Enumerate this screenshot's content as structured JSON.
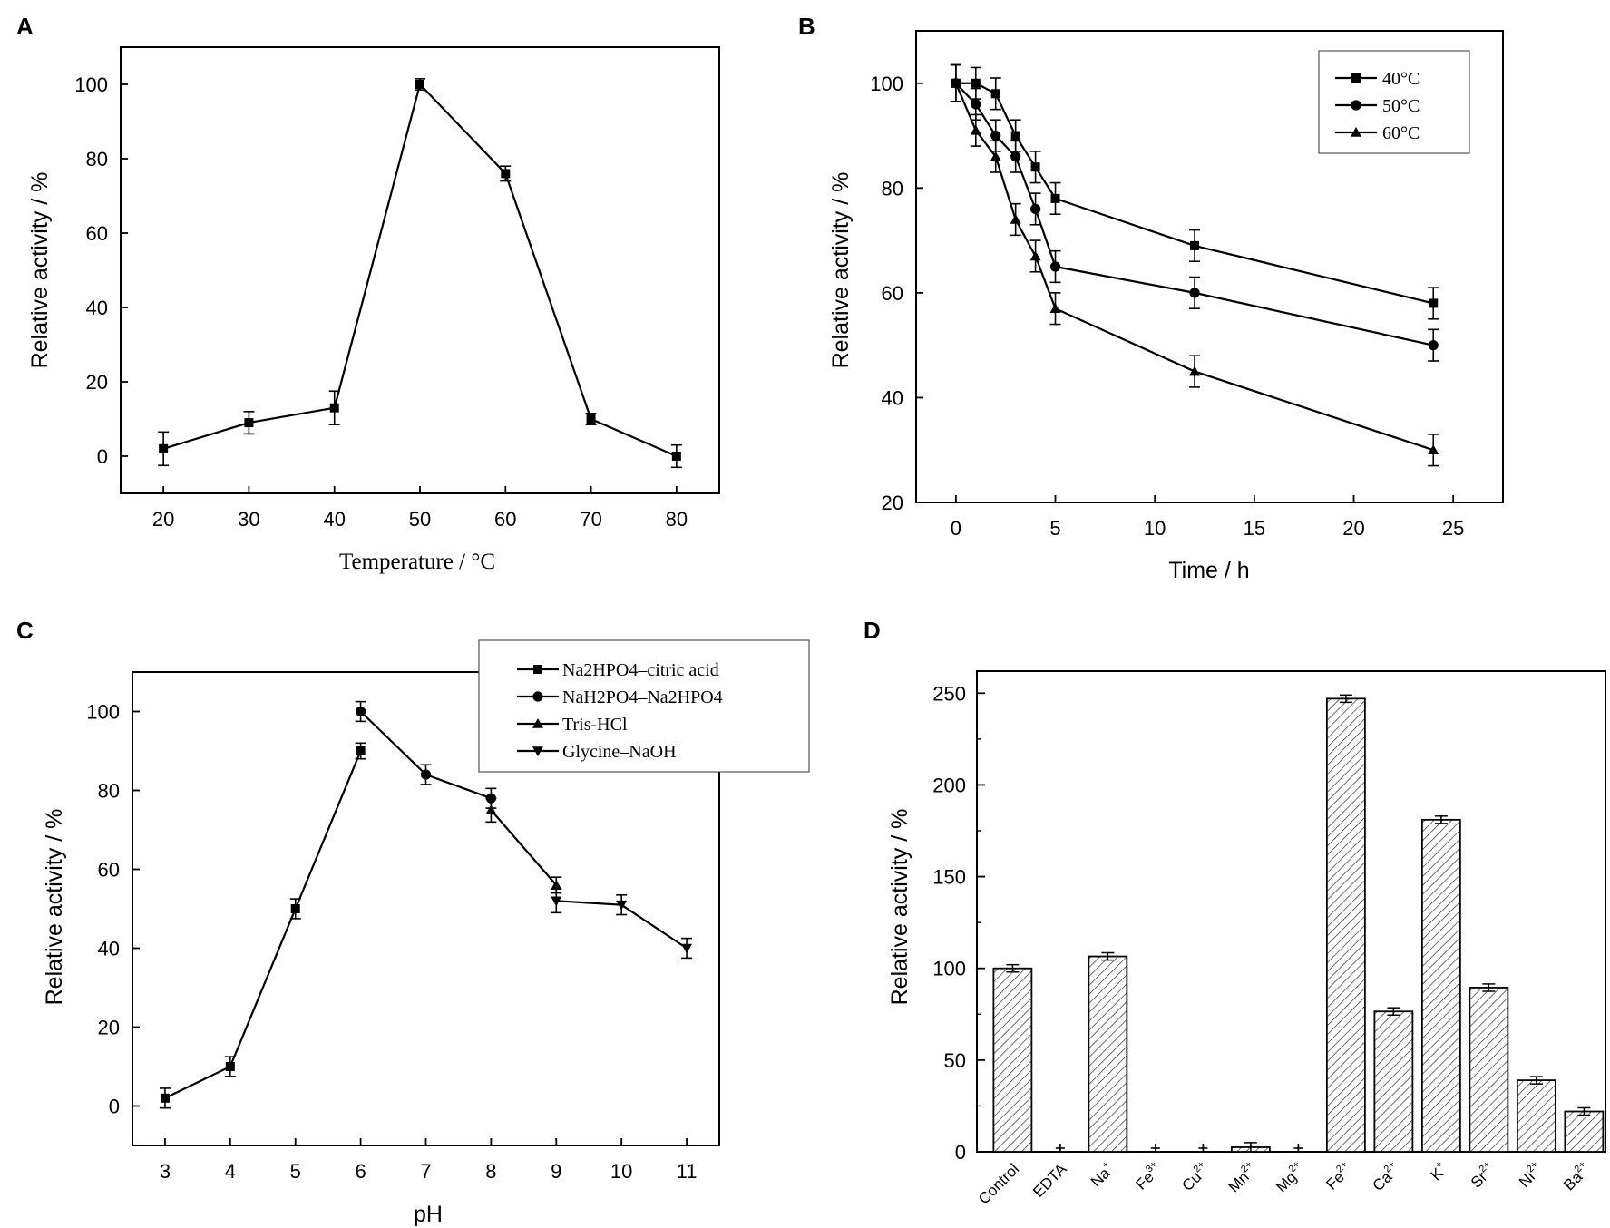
{
  "chart_data": [
    {
      "panel": "A",
      "type": "line",
      "xlabel": "Temperature / °C",
      "ylabel": "Relative activity / %",
      "x_ticks": [
        20,
        30,
        40,
        50,
        60,
        70,
        80
      ],
      "y_ticks": [
        0,
        20,
        40,
        60,
        80,
        100
      ],
      "xlim": [
        15,
        85
      ],
      "ylim": [
        -10,
        110
      ],
      "series": [
        {
          "name": "",
          "marker": "square",
          "x": [
            20,
            30,
            40,
            50,
            60,
            70,
            80
          ],
          "y": [
            2,
            9,
            13,
            100,
            76,
            10,
            0
          ],
          "err": [
            4.5,
            3,
            4.5,
            1.5,
            2,
            1.5,
            3
          ]
        }
      ]
    },
    {
      "panel": "B",
      "type": "line",
      "xlabel": "Time / h",
      "ylabel": "Relative activity / %",
      "x_ticks": [
        0,
        5,
        10,
        15,
        20,
        25
      ],
      "y_ticks": [
        20,
        40,
        60,
        80,
        100
      ],
      "xlim": [
        -2,
        27.5
      ],
      "ylim": [
        20,
        110
      ],
      "legend": "top-right",
      "series": [
        {
          "name": "40°C",
          "marker": "square",
          "x": [
            0,
            1,
            2,
            3,
            4,
            5,
            12,
            24
          ],
          "y": [
            100,
            100,
            98,
            90,
            84,
            78,
            69,
            58
          ],
          "err": [
            3.5,
            3,
            3,
            3,
            3,
            3,
            3,
            3
          ]
        },
        {
          "name": "50°C",
          "marker": "circle",
          "x": [
            0,
            1,
            2,
            3,
            4,
            5,
            12,
            24
          ],
          "y": [
            100,
            96,
            90,
            86,
            76,
            65,
            60,
            50
          ],
          "err": [
            3.5,
            3,
            3,
            3,
            3,
            3,
            3,
            3
          ]
        },
        {
          "name": "60°C",
          "marker": "triangle",
          "x": [
            0,
            1,
            2,
            3,
            4,
            5,
            12,
            24
          ],
          "y": [
            100,
            91,
            86,
            74,
            67,
            57,
            45,
            30
          ],
          "err": [
            3.5,
            3,
            3,
            3,
            3,
            3,
            3,
            3
          ]
        }
      ]
    },
    {
      "panel": "C",
      "type": "line",
      "xlabel": "pH",
      "ylabel": "Relative activity / %",
      "x_ticks": [
        3,
        4,
        5,
        6,
        7,
        8,
        9,
        10,
        11
      ],
      "y_ticks": [
        0,
        20,
        40,
        60,
        80,
        100
      ],
      "xlim": [
        2.5,
        11.5
      ],
      "ylim": [
        -10,
        110
      ],
      "legend": "top-right",
      "series": [
        {
          "name": "Na2HPO4–citric acid",
          "marker": "square",
          "x": [
            3,
            4,
            5,
            6
          ],
          "y": [
            2,
            10,
            50,
            90
          ],
          "err": [
            2.5,
            2.5,
            2.5,
            2
          ]
        },
        {
          "name": "NaH2PO4–Na2HPO4",
          "marker": "circle",
          "x": [
            6,
            7,
            8
          ],
          "y": [
            100,
            84,
            78
          ],
          "err": [
            2.5,
            2.5,
            2.5
          ]
        },
        {
          "name": "Tris-HCl",
          "marker": "triangle",
          "x": [
            8,
            9
          ],
          "y": [
            75,
            56
          ],
          "err": [
            3,
            2
          ]
        },
        {
          "name": "Glycine–NaOH",
          "marker": "triangle-down",
          "x": [
            9,
            10,
            11
          ],
          "y": [
            52,
            51,
            40
          ],
          "err": [
            3,
            2.5,
            2.5
          ]
        }
      ]
    },
    {
      "panel": "D",
      "type": "bar",
      "ylabel": "Relative activity / %",
      "y_ticks": [
        0,
        50,
        100,
        150,
        200,
        250
      ],
      "ylim": [
        0,
        262
      ],
      "categories": [
        {
          "base": "Control",
          "sup": ""
        },
        {
          "base": "EDTA",
          "sup": ""
        },
        {
          "base": "Na",
          "sup": "+"
        },
        {
          "base": "Fe",
          "sup": "3+"
        },
        {
          "base": "Cu",
          "sup": "2+"
        },
        {
          "base": "Mn",
          "sup": "2+"
        },
        {
          "base": "Mg",
          "sup": "2+"
        },
        {
          "base": "Fe",
          "sup": "2+"
        },
        {
          "base": "Ca",
          "sup": "2+"
        },
        {
          "base": "K",
          "sup": "+"
        },
        {
          "base": "Sr",
          "sup": "2+"
        },
        {
          "base": "Ni",
          "sup": "2+"
        },
        {
          "base": "Ba",
          "sup": "2+"
        }
      ],
      "values": [
        100,
        0,
        106.5,
        0,
        0,
        2.5,
        0,
        247,
        76.5,
        181,
        89.5,
        39,
        22
      ],
      "err": [
        2,
        0,
        2,
        0,
        0,
        2.5,
        0,
        2,
        2,
        2,
        2,
        2,
        2
      ],
      "plus_markers": [
        1,
        3,
        4,
        6
      ]
    }
  ]
}
